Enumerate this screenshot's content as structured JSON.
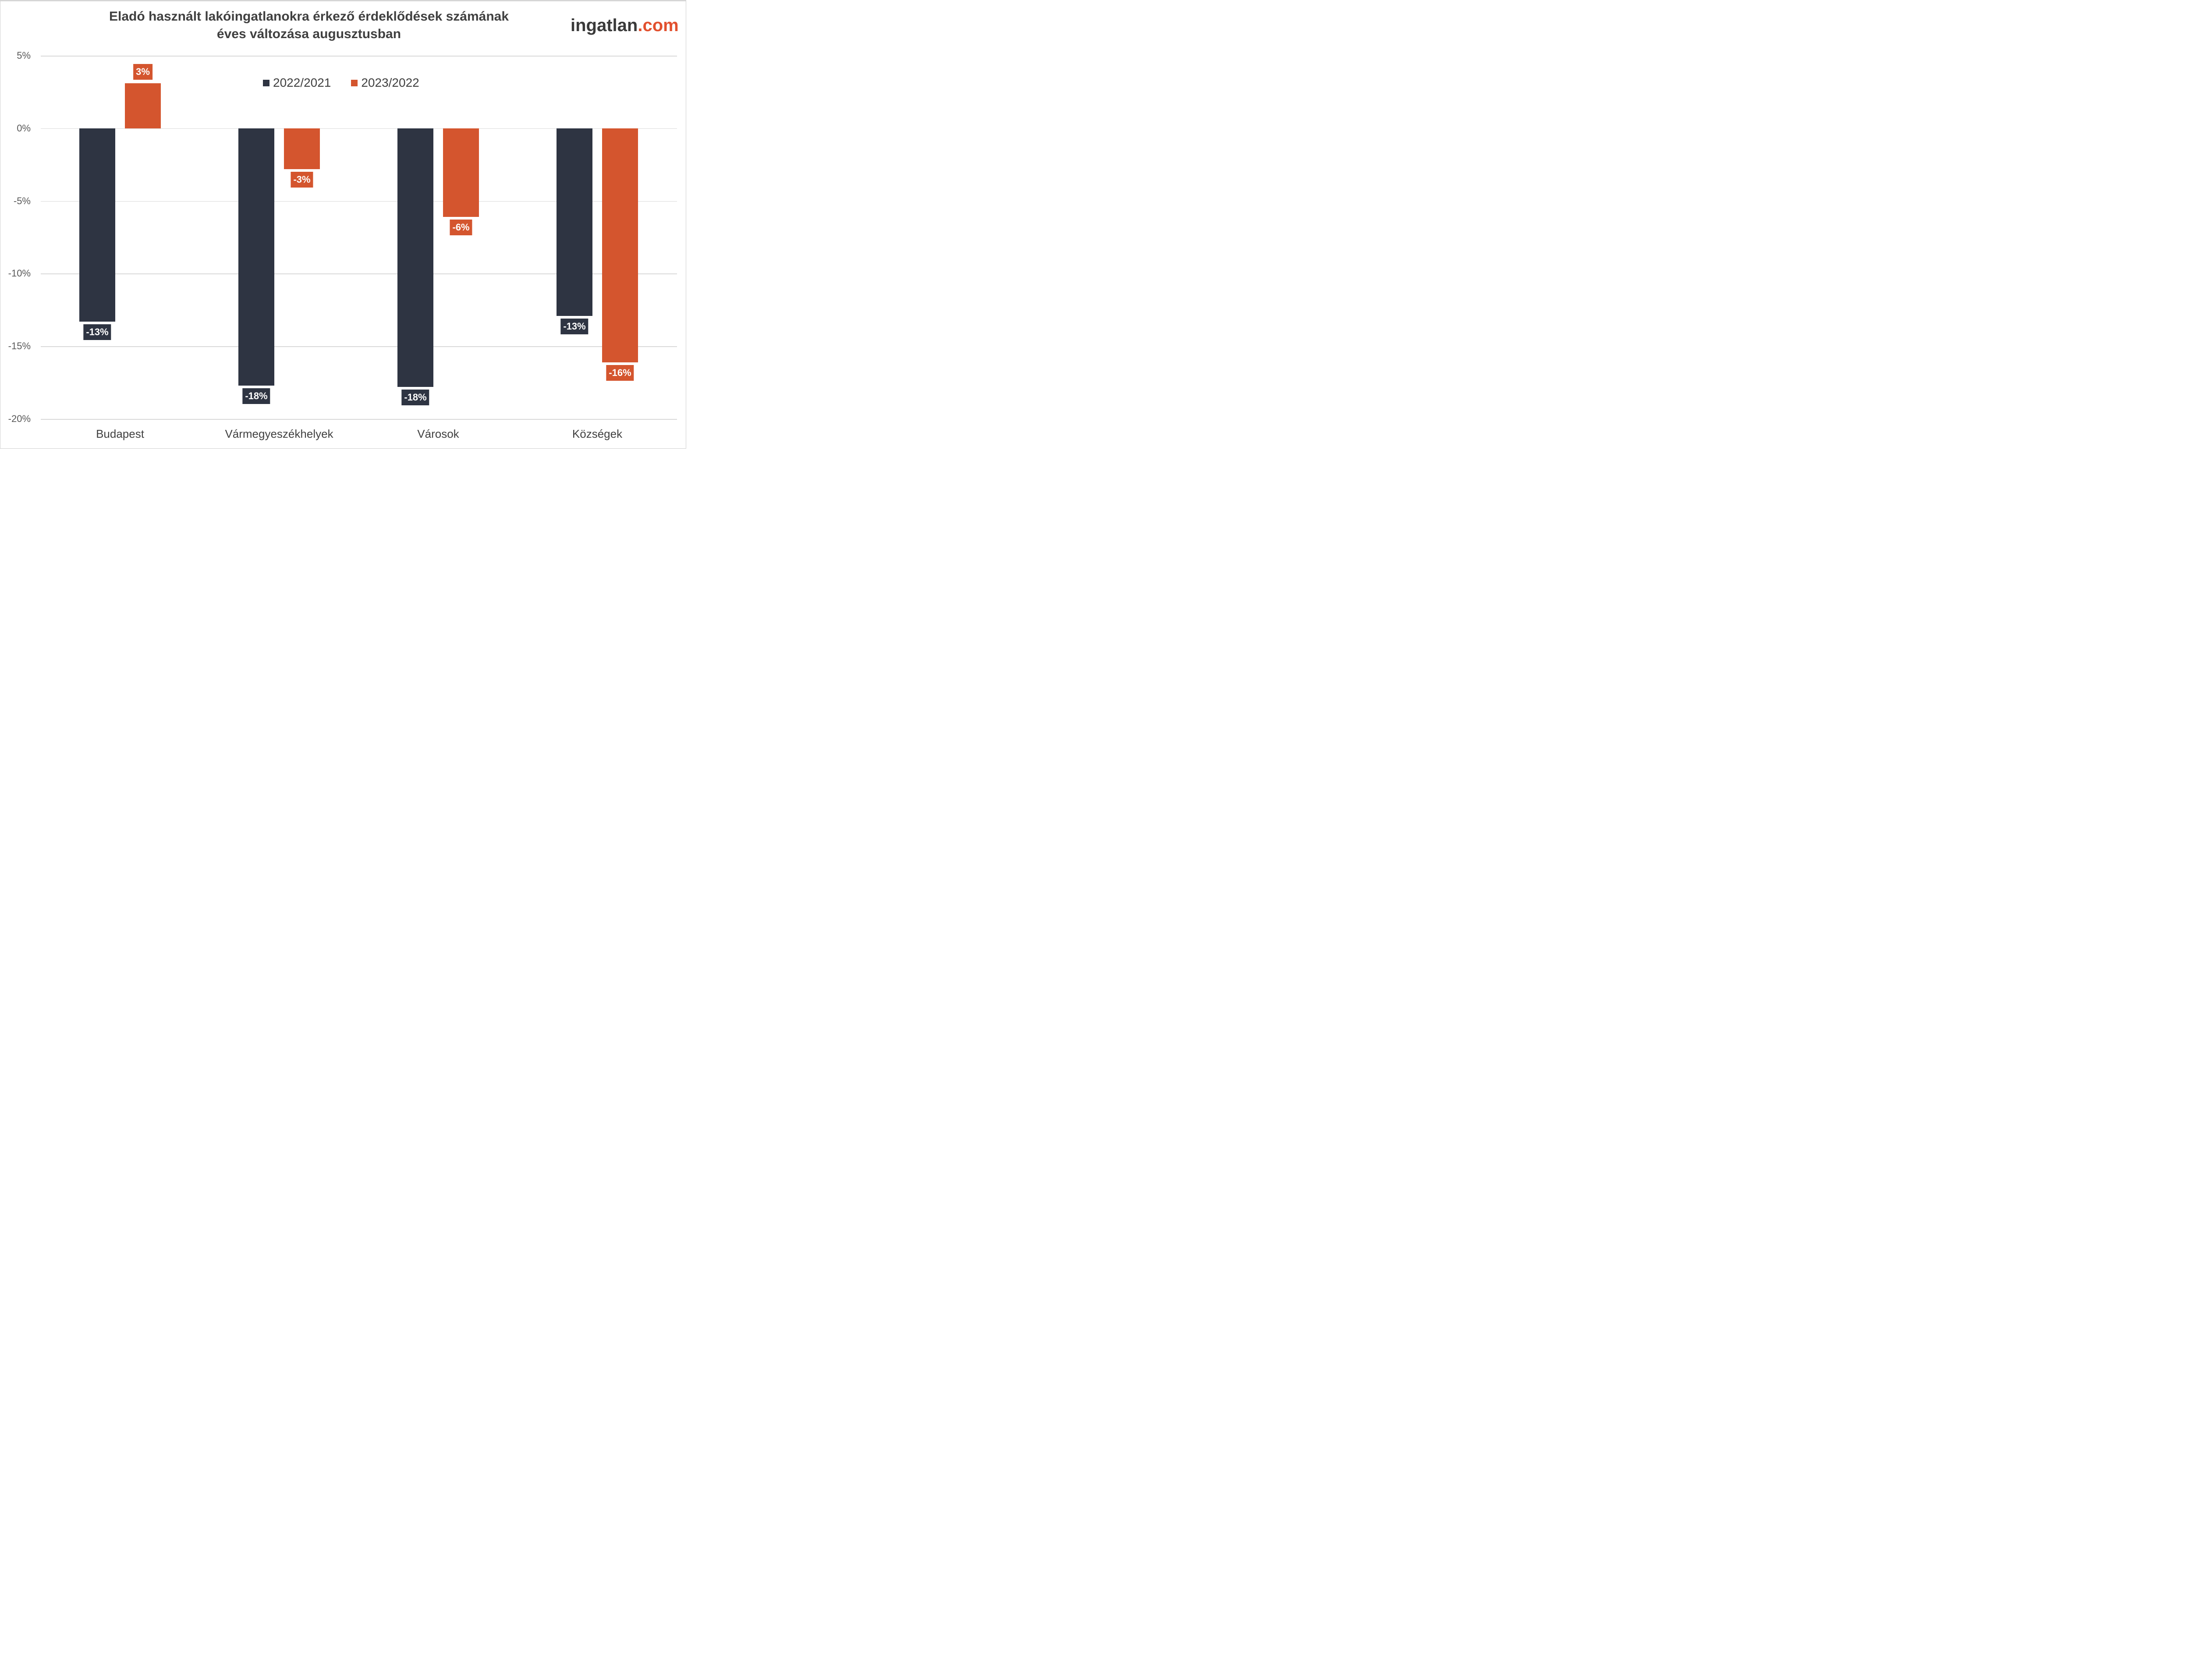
{
  "title": {
    "line1": "Eladó használt lakóingatlanokra érkező érdeklődések számának",
    "line2": "éves változása augusztusban"
  },
  "logo": {
    "part1": "ingatlan",
    "part2": ".com"
  },
  "colors": {
    "series1": "#2E3442",
    "series2": "#D4552E",
    "grid": "#D9D9D9",
    "text": "#404040"
  },
  "legend": [
    {
      "label": "2022/2021",
      "color": "#2E3442"
    },
    {
      "label": "2023/2022",
      "color": "#D4552E"
    }
  ],
  "y_ticks": [
    "5%",
    "0%",
    "-5%",
    "-10%",
    "-15%",
    "-20%"
  ],
  "categories": [
    "Budapest",
    "Vármegyeszékhelyek",
    "Városok",
    "Községek"
  ],
  "labels": {
    "s1": [
      "-13%",
      "-18%",
      "-18%",
      "-13%"
    ],
    "s2": [
      "3%",
      "-3%",
      "-6%",
      "-16%"
    ]
  },
  "chart_data": {
    "type": "bar",
    "title": "Eladó használt lakóingatlanokra érkező érdeklődések számának éves változása augusztusban",
    "xlabel": "",
    "ylabel": "",
    "categories": [
      "Budapest",
      "Vármegyeszékhelyek",
      "Városok",
      "Községek"
    ],
    "series": [
      {
        "name": "2022/2021",
        "values": [
          -13.3,
          -17.7,
          -17.8,
          -12.9
        ],
        "data_labels": [
          "-13%",
          "-18%",
          "-18%",
          "-13%"
        ]
      },
      {
        "name": "2023/2022",
        "values": [
          3.1,
          -2.8,
          -6.1,
          -16.1
        ],
        "data_labels": [
          "3%",
          "-3%",
          "-6%",
          "-16%"
        ]
      }
    ],
    "ylim": [
      -20,
      5
    ],
    "y_ticks": [
      5,
      0,
      -5,
      -10,
      -15,
      -20
    ],
    "y_tick_format": "percent",
    "grid": true,
    "legend_position": "top-center"
  }
}
